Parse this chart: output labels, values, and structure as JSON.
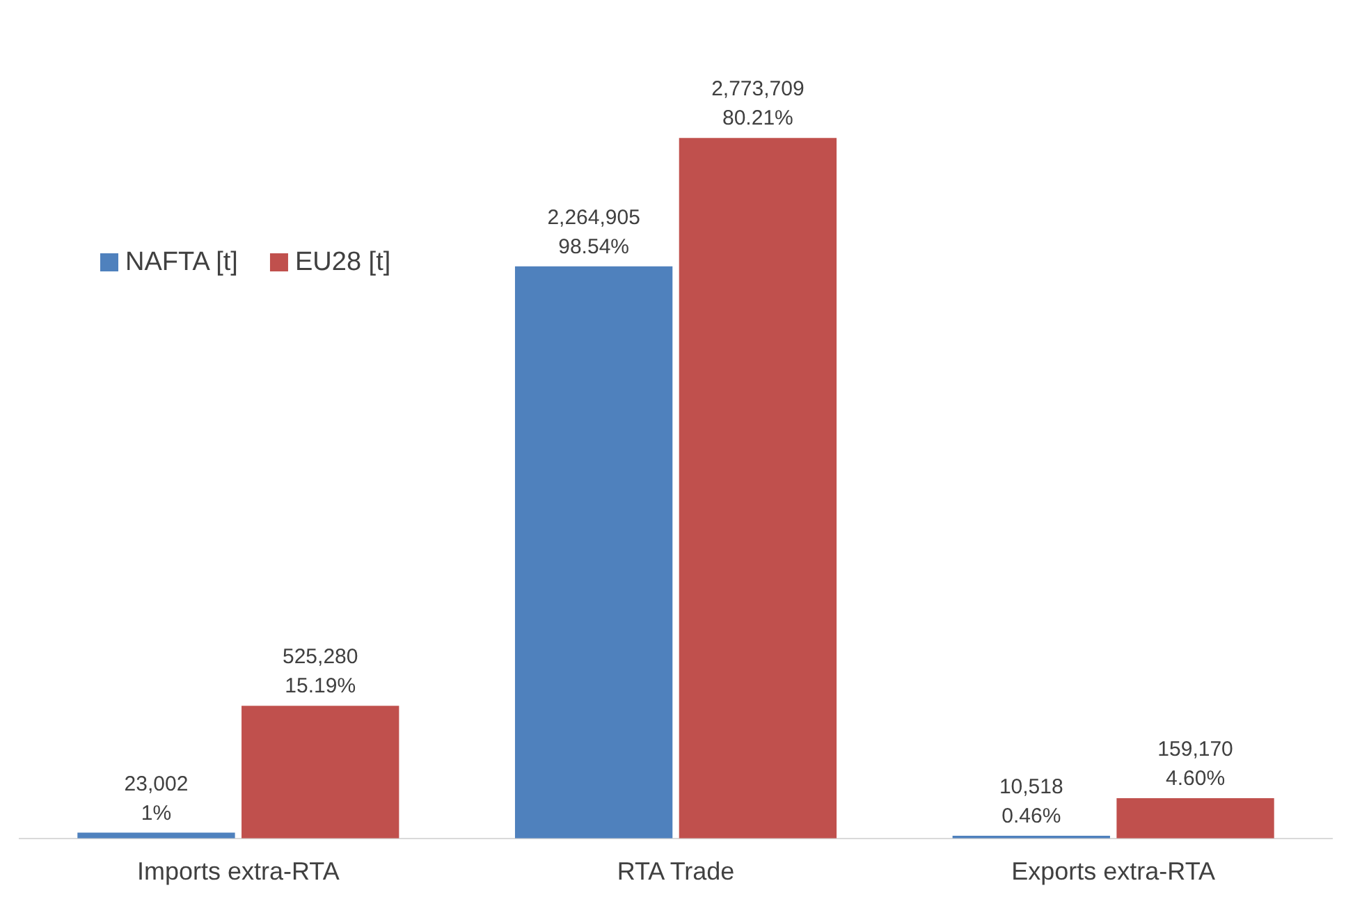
{
  "chart_data": {
    "type": "bar",
    "categories": [
      "Imports extra-RTA",
      "RTA Trade",
      "Exports extra-RTA"
    ],
    "series": [
      {
        "name": "NAFTA [t]",
        "color": "#4f81bd",
        "values": [
          23002,
          2264905,
          10518
        ],
        "value_labels": [
          "23,002\n1%",
          "2,264,905\n98.54%",
          "10,518\n0.46%"
        ]
      },
      {
        "name": "EU28 [t]",
        "color": "#c0504d",
        "values": [
          525280,
          2773709,
          159170
        ],
        "value_labels": [
          "525,280\n15.19%",
          "2,773,709\n80.21%",
          "159,170\n4.60%"
        ]
      }
    ],
    "legend": "top left",
    "grid": false,
    "tick_labels": "x"
  }
}
